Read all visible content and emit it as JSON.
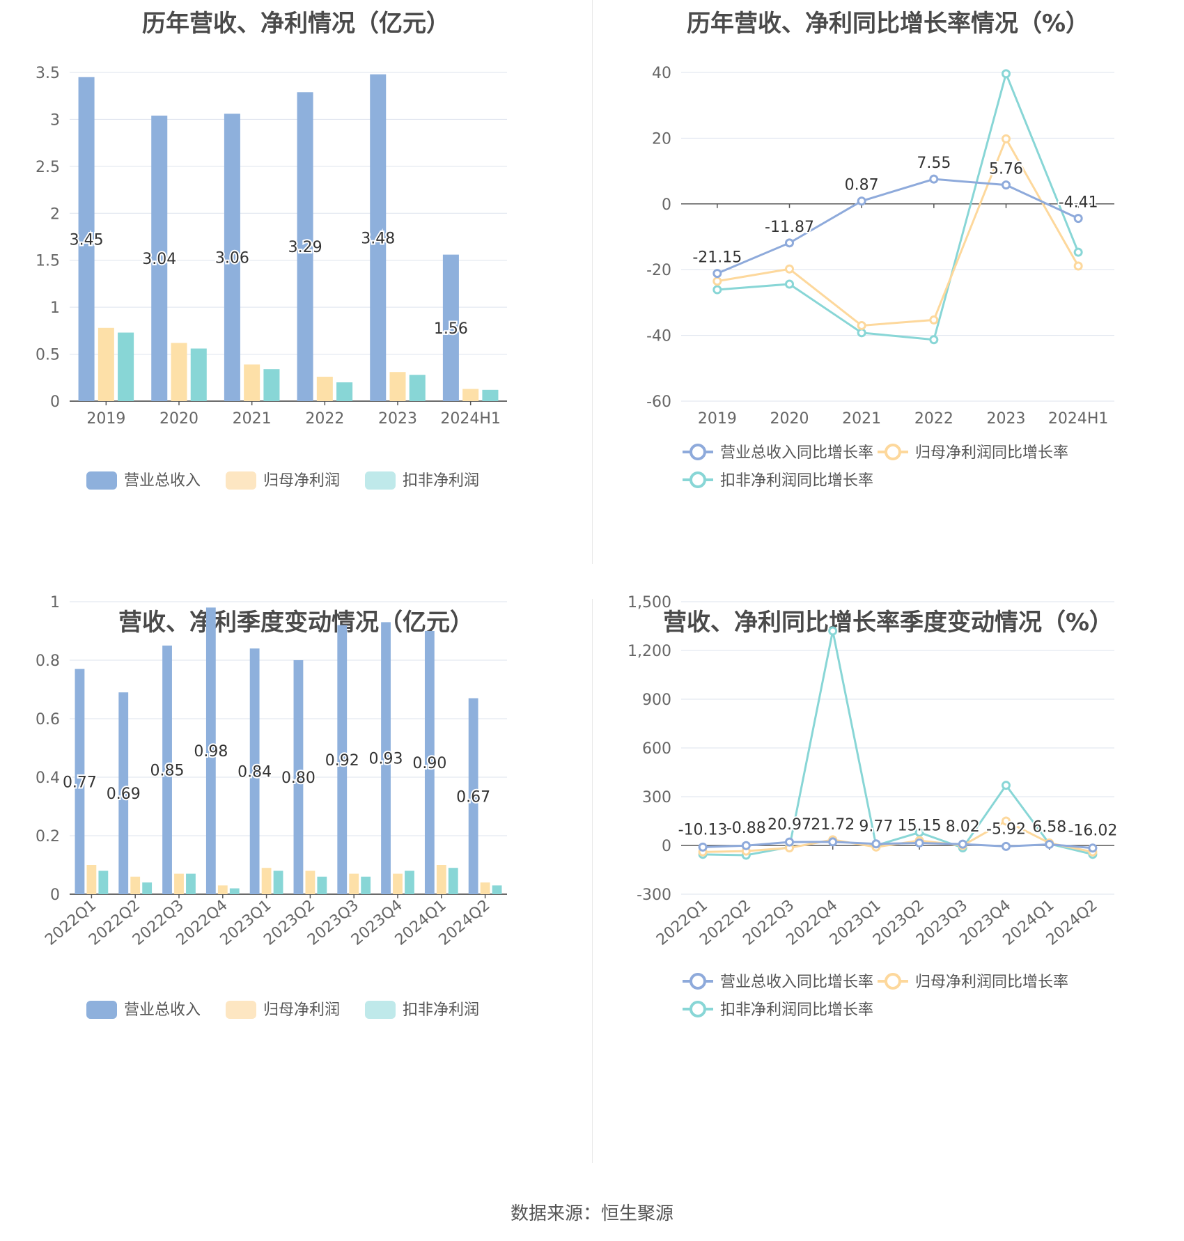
{
  "source": "数据来源：恒生聚源",
  "charts": {
    "annual_amount": {
      "title": "历年营收、净利情况（亿元）",
      "legend": [
        "营业总收入",
        "归母净利润",
        "扣非净利润"
      ],
      "colors": [
        "#8eb0dc",
        "#fde0a8",
        "#88d6d6"
      ],
      "legend_colors": [
        "#8eb0dc",
        "#fde6c2",
        "#bfe9ea"
      ]
    },
    "annual_growth": {
      "title": "历年营收、净利同比增长率情况（%）",
      "legend": [
        "营业总收入同比增长率",
        "归母净利润同比增长率",
        "扣非净利润同比增长率"
      ],
      "colors": [
        "#8eaadb",
        "#fdd89c",
        "#88d6d6"
      ]
    },
    "quarter_amount": {
      "title": "营收、净利季度变动情况（亿元）",
      "legend": [
        "营业总收入",
        "归母净利润",
        "扣非净利润"
      ],
      "colors": [
        "#8eb0dc",
        "#fde0a8",
        "#88d6d6"
      ],
      "legend_colors": [
        "#8eb0dc",
        "#fde6c2",
        "#bfe9ea"
      ]
    },
    "quarter_growth": {
      "title": "营收、净利同比增长率季度变动情况（%）",
      "legend": [
        "营业总收入同比增长率",
        "归母净利润同比增长率",
        "扣非净利润同比增长率"
      ],
      "colors": [
        "#8eaadb",
        "#fdd89c",
        "#88d6d6"
      ]
    }
  },
  "chart_data": [
    {
      "type": "bar",
      "title": "历年营收、净利情况（亿元）",
      "categories": [
        "2019",
        "2020",
        "2021",
        "2022",
        "2023",
        "2024H1"
      ],
      "series": [
        {
          "name": "营业总收入",
          "values": [
            3.45,
            3.04,
            3.06,
            3.29,
            3.48,
            1.56
          ],
          "labels": [
            "3.45",
            "3.04",
            "3.06",
            "3.29",
            "3.48",
            "1.56"
          ]
        },
        {
          "name": "归母净利润",
          "values": [
            0.78,
            0.62,
            0.39,
            0.26,
            0.31,
            0.13
          ]
        },
        {
          "name": "扣非净利润",
          "values": [
            0.73,
            0.56,
            0.34,
            0.2,
            0.28,
            0.12
          ]
        }
      ],
      "ylim": [
        0,
        3.5
      ],
      "yticks": [
        "0",
        "0.5",
        "1",
        "1.5",
        "2",
        "2.5",
        "3",
        "3.5"
      ],
      "legend_position": "bottom",
      "grid": true
    },
    {
      "type": "line",
      "title": "历年营收、净利同比增长率情况（%）",
      "categories": [
        "2019",
        "2020",
        "2021",
        "2022",
        "2023",
        "2024H1"
      ],
      "series": [
        {
          "name": "营业总收入同比增长率",
          "values": [
            -21.15,
            -11.87,
            0.87,
            7.55,
            5.76,
            -4.41
          ],
          "labels": [
            "-21.15",
            "-11.87",
            "0.87",
            "7.55",
            "5.76",
            "-4.41"
          ]
        },
        {
          "name": "归母净利润同比增长率",
          "values": [
            -23.5,
            -19.8,
            -37.0,
            -35.3,
            19.8,
            -18.9
          ]
        },
        {
          "name": "扣非净利润同比增长率",
          "values": [
            -26.1,
            -24.4,
            -39.2,
            -41.3,
            39.6,
            -14.7
          ]
        }
      ],
      "ylim": [
        -60,
        40
      ],
      "yticks": [
        "-60",
        "-40",
        "-20",
        "0",
        "20",
        "40"
      ],
      "legend_position": "bottom",
      "grid": true
    },
    {
      "type": "bar",
      "title": "营收、净利季度变动情况（亿元）",
      "categories": [
        "2022Q1",
        "2022Q2",
        "2022Q3",
        "2022Q4",
        "2023Q1",
        "2023Q2",
        "2023Q3",
        "2023Q4",
        "2024Q1",
        "2024Q2"
      ],
      "series": [
        {
          "name": "营业总收入",
          "values": [
            0.77,
            0.69,
            0.85,
            0.98,
            0.84,
            0.8,
            0.92,
            0.93,
            0.9,
            0.67
          ],
          "labels": [
            "0.77",
            "0.69",
            "0.85",
            "0.98",
            "0.84",
            "0.80",
            "0.92",
            "0.93",
            "0.90",
            "0.67"
          ]
        },
        {
          "name": "归母净利润",
          "values": [
            0.1,
            0.06,
            0.07,
            0.03,
            0.09,
            0.08,
            0.07,
            0.07,
            0.1,
            0.04
          ]
        },
        {
          "name": "扣非净利润",
          "values": [
            0.08,
            0.04,
            0.07,
            0.02,
            0.08,
            0.06,
            0.06,
            0.08,
            0.09,
            0.03
          ]
        }
      ],
      "ylim": [
        0,
        1
      ],
      "yticks": [
        "0",
        "0.2",
        "0.4",
        "0.6",
        "0.8",
        "1"
      ],
      "legend_position": "bottom",
      "grid": true
    },
    {
      "type": "line",
      "title": "营收、净利同比增长率季度变动情况（%）",
      "categories": [
        "2022Q1",
        "2022Q2",
        "2022Q3",
        "2022Q4",
        "2023Q1",
        "2023Q2",
        "2023Q3",
        "2023Q4",
        "2024Q1",
        "2024Q2"
      ],
      "series": [
        {
          "name": "营业总收入同比增长率",
          "values": [
            -10.13,
            -0.88,
            20.97,
            21.72,
            9.77,
            15.15,
            8.02,
            -5.92,
            6.58,
            -16.02
          ],
          "labels": [
            "-10.13",
            "-0.88",
            "20.97",
            "21.72",
            "9.77",
            "15.15",
            "8.02",
            "-5.92",
            "6.58",
            "-16.02"
          ]
        },
        {
          "name": "归母净利润同比增长率",
          "values": [
            -40,
            -35,
            -15,
            35,
            -10,
            30,
            0,
            150,
            15,
            -40
          ]
        },
        {
          "name": "扣非净利润同比增长率",
          "values": [
            -55,
            -60,
            -10,
            1320,
            0,
            80,
            -15,
            370,
            10,
            -55
          ]
        }
      ],
      "ylim": [
        -300,
        1500
      ],
      "yticks": [
        "-300",
        "0",
        "300",
        "600",
        "900",
        "1,200",
        "1,500"
      ],
      "legend_position": "bottom",
      "grid": true
    }
  ]
}
